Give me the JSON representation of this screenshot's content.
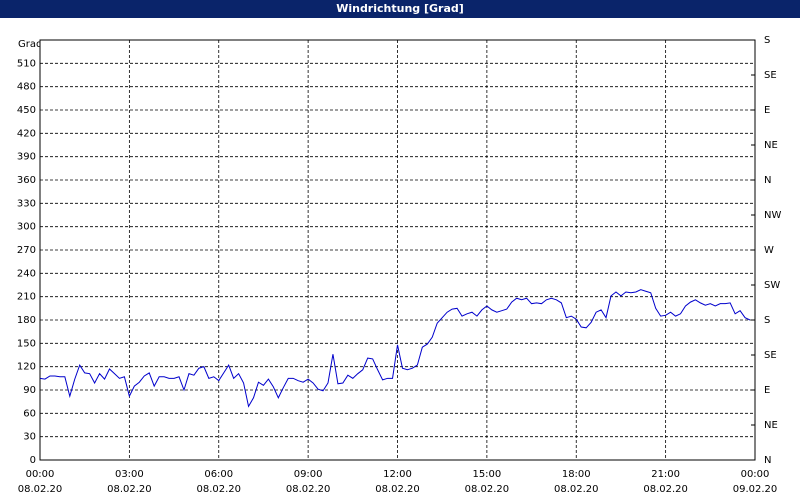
{
  "window_title": "Windrichtung [Grad]",
  "chart_data": {
    "type": "line",
    "ylabel": "Grad",
    "color": "#0000cc",
    "grid": true,
    "x": [
      0,
      10,
      20,
      30,
      40,
      50,
      60,
      70,
      80,
      90,
      100,
      110,
      120,
      130,
      140,
      150,
      160,
      170,
      180,
      190,
      200,
      210,
      220,
      230,
      240,
      250,
      260,
      270,
      280,
      290,
      300,
      310,
      320,
      330,
      340,
      350,
      360,
      370,
      380,
      390,
      400,
      410,
      420,
      430,
      440,
      450,
      460,
      470,
      480,
      490,
      500,
      510,
      520,
      530,
      540,
      550,
      560,
      570,
      580,
      590,
      600,
      610,
      620,
      630,
      640,
      650,
      660,
      670,
      680,
      690,
      700,
      710,
      720,
      730,
      740,
      750,
      760,
      770,
      780,
      790,
      800,
      810,
      820,
      830,
      840,
      850,
      860,
      870,
      880,
      890,
      900,
      910,
      920,
      930,
      940,
      950,
      960,
      970,
      980,
      990,
      1000,
      1010,
      1020,
      1030,
      1040,
      1050,
      1060,
      1070,
      1080,
      1090,
      1100,
      1110,
      1120,
      1130,
      1140,
      1150,
      1160,
      1170,
      1180,
      1190,
      1200,
      1210,
      1220,
      1230,
      1240,
      1250,
      1260,
      1270,
      1280,
      1290,
      1300,
      1310,
      1320,
      1330,
      1340,
      1350,
      1360,
      1370,
      1380,
      1390,
      1400,
      1410,
      1420,
      1430
    ],
    "values": [
      105,
      104,
      108,
      108,
      107,
      107,
      82,
      104,
      122,
      112,
      111,
      99,
      111,
      104,
      117,
      111,
      105,
      107,
      82,
      95,
      100,
      108,
      112,
      95,
      107,
      107,
      105,
      105,
      107,
      90,
      111,
      109,
      118,
      120,
      105,
      107,
      102,
      112,
      122,
      105,
      111,
      99,
      69,
      80,
      100,
      96,
      104,
      94,
      80,
      93,
      105,
      105,
      102,
      100,
      104,
      99,
      91,
      89,
      99,
      136,
      98,
      99,
      109,
      105,
      111,
      116,
      131,
      130,
      116,
      103,
      105,
      105,
      148,
      118,
      116,
      118,
      122,
      145,
      149,
      158,
      176,
      183,
      190,
      194,
      195,
      185,
      188,
      190,
      185,
      193,
      198,
      193,
      190,
      192,
      194,
      203,
      208,
      206,
      208,
      201,
      202,
      201,
      206,
      208,
      206,
      202,
      183,
      185,
      181,
      171,
      170,
      177,
      190,
      193,
      183,
      211,
      216,
      211,
      216,
      215,
      216,
      219,
      217,
      215,
      195,
      185,
      186,
      190,
      185,
      188,
      198,
      203,
      206,
      202,
      199,
      201,
      198,
      201,
      201,
      202,
      188,
      192,
      183,
      180
    ],
    "xlim": [
      0,
      1440
    ],
    "xticks": [
      {
        "value": 0,
        "label": "00:00"
      },
      {
        "value": 180,
        "label": "03:00"
      },
      {
        "value": 360,
        "label": "06:00"
      },
      {
        "value": 540,
        "label": "09:00"
      },
      {
        "value": 720,
        "label": "12:00"
      },
      {
        "value": 900,
        "label": "15:00"
      },
      {
        "value": 1080,
        "label": "18:00"
      },
      {
        "value": 1260,
        "label": "21:00"
      },
      {
        "value": 1440,
        "label": "00:00"
      }
    ],
    "xtick_dates": [
      "08.02.20",
      "08.02.20",
      "08.02.20",
      "08.02.20",
      "08.02.20",
      "08.02.20",
      "08.02.20",
      "08.02.20",
      "09.02.20"
    ],
    "ylim": [
      0,
      540
    ],
    "yticks": [
      0,
      30,
      60,
      90,
      120,
      150,
      180,
      210,
      240,
      270,
      300,
      330,
      360,
      390,
      420,
      450,
      480,
      510
    ],
    "y2lim": [
      0,
      540
    ],
    "y2ticks": [
      {
        "value": 0,
        "label": "N"
      },
      {
        "value": 45,
        "label": "NE"
      },
      {
        "value": 90,
        "label": "E"
      },
      {
        "value": 135,
        "label": "SE"
      },
      {
        "value": 180,
        "label": "S"
      },
      {
        "value": 225,
        "label": "SW"
      },
      {
        "value": 270,
        "label": "W"
      },
      {
        "value": 315,
        "label": "NW"
      },
      {
        "value": 360,
        "label": "N"
      },
      {
        "value": 405,
        "label": "NE"
      },
      {
        "value": 450,
        "label": "E"
      },
      {
        "value": 495,
        "label": "SE"
      },
      {
        "value": 540,
        "label": "S"
      }
    ]
  }
}
